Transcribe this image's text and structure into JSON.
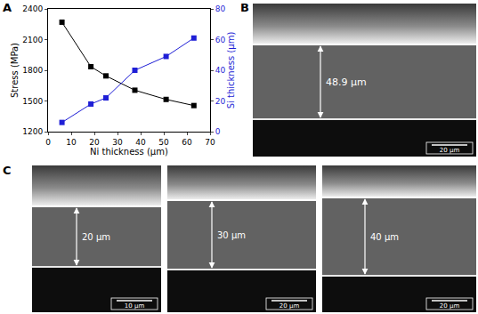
{
  "chart_data": {
    "type": "line",
    "label": "A",
    "xlabel": "Ni thickness (μm)",
    "ylabel": "Stress (MPa)",
    "y2label": "Si thickness (μm)",
    "x": [
      6,
      18.5,
      25,
      37.5,
      51,
      63
    ],
    "series": [
      {
        "color": "#000000",
        "marker": "square",
        "values": [
          2270,
          1835,
          1745,
          1605,
          1515,
          1455
        ]
      },
      {
        "color": "#1f1fd6",
        "marker": "square",
        "axis": "y2",
        "values": [
          6,
          18,
          22,
          40,
          49,
          61
        ]
      }
    ],
    "xlim": [
      0,
      70
    ],
    "xticks": [
      0,
      10,
      20,
      30,
      40,
      50,
      60,
      70
    ],
    "ylim": [
      1200,
      2400
    ],
    "yticks": [
      1200,
      1500,
      1800,
      2100,
      2400
    ],
    "y2lim": [
      0,
      80
    ],
    "y2ticks": [
      0,
      20,
      40,
      60,
      80
    ],
    "grid": false
  },
  "image_panels": {
    "B": {
      "label": "B",
      "images": [
        {
          "thickness_label": "48.9 μm",
          "scale_bar": "20 μm"
        }
      ]
    },
    "C": {
      "label": "C",
      "images": [
        {
          "thickness_label": "20 μm",
          "scale_bar": "10 μm"
        },
        {
          "thickness_label": "30 μm",
          "scale_bar": "20 μm"
        },
        {
          "thickness_label": "40 μm",
          "scale_bar": "20 μm"
        }
      ]
    }
  }
}
